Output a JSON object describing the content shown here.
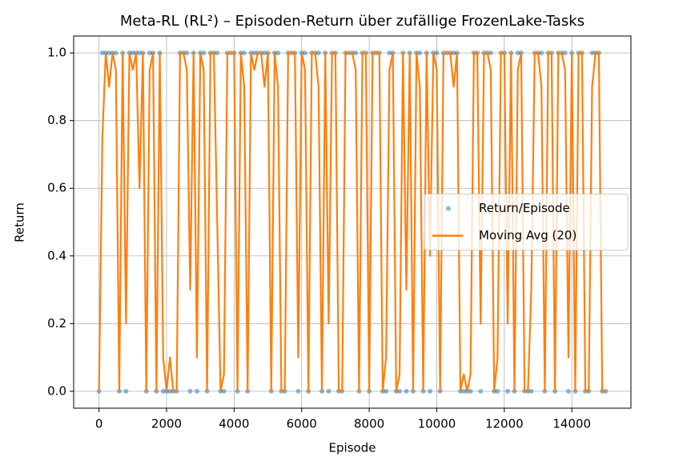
{
  "chart_data": {
    "type": "line",
    "title": "Meta-RL (RL²) – Episoden-Return über zufällige FrozenLake-Tasks",
    "xlabel": "Episode",
    "ylabel": "Return",
    "x": [
      0,
      100,
      200,
      300,
      400,
      500,
      600,
      700,
      800,
      900,
      1000,
      1100,
      1200,
      1300,
      1400,
      1500,
      1600,
      1700,
      1800,
      1900,
      2000,
      2100,
      2200,
      2300,
      2400,
      2500,
      2600,
      2700,
      2800,
      2900,
      3000,
      3100,
      3200,
      3300,
      3400,
      3500,
      3600,
      3700,
      3800,
      3900,
      4000,
      4100,
      4200,
      4300,
      4400,
      4500,
      4600,
      4700,
      4800,
      4900,
      5000,
      5100,
      5200,
      5300,
      5400,
      5500,
      5600,
      5700,
      5800,
      5900,
      6000,
      6100,
      6200,
      6300,
      6400,
      6500,
      6600,
      6700,
      6800,
      6900,
      7000,
      7100,
      7200,
      7300,
      7400,
      7500,
      7600,
      7700,
      7800,
      7900,
      8000,
      8100,
      8200,
      8300,
      8400,
      8500,
      8600,
      8700,
      8800,
      8900,
      9000,
      9100,
      9200,
      9300,
      9400,
      9500,
      9600,
      9700,
      9800,
      9900,
      10000,
      10100,
      10200,
      10300,
      10400,
      10500,
      10600,
      10700,
      10800,
      10900,
      11000,
      11100,
      11200,
      11300,
      11400,
      11500,
      11600,
      11700,
      11800,
      11900,
      12000,
      12100,
      12200,
      12300,
      12400,
      12500,
      12600,
      12700,
      12800,
      12900,
      13000,
      13100,
      13200,
      13300,
      13400,
      13500,
      13600,
      13700,
      13800,
      13900,
      14000,
      14100,
      14200,
      14300,
      14400,
      14500,
      14600,
      14700,
      14800,
      14900,
      15000
    ],
    "series": [
      {
        "name": "Return/Episode",
        "color": "#1f77b4",
        "marker": "scatter",
        "values": [
          0,
          1,
          1,
          1,
          1,
          1,
          0,
          1,
          0,
          1,
          1,
          1,
          1,
          1,
          0,
          1,
          1,
          0,
          1,
          0,
          0,
          0,
          0,
          0,
          1,
          1,
          1,
          0,
          1,
          0,
          1,
          1,
          0,
          1,
          1,
          1,
          0,
          0,
          1,
          1,
          1,
          0,
          1,
          1,
          0,
          1,
          1,
          1,
          1,
          1,
          1,
          0,
          1,
          1,
          0,
          0,
          1,
          1,
          1,
          0,
          1,
          1,
          0,
          1,
          1,
          1,
          0,
          1,
          0,
          1,
          1,
          0,
          0,
          1,
          1,
          1,
          1,
          0,
          1,
          1,
          0,
          1,
          1,
          1,
          0,
          0,
          1,
          1,
          0,
          0,
          1,
          0,
          1,
          0,
          1,
          1,
          0,
          1,
          0,
          1,
          1,
          0,
          1,
          1,
          1,
          1,
          1,
          0,
          0,
          0,
          0,
          1,
          1,
          0,
          1,
          1,
          1,
          0,
          0,
          1,
          1,
          0,
          1,
          0,
          1,
          1,
          0,
          0,
          0,
          1,
          1,
          1,
          0,
          1,
          1,
          0,
          1,
          1,
          1,
          0,
          1,
          0,
          1,
          1,
          0,
          0,
          1,
          1,
          1,
          0,
          0
        ]
      },
      {
        "name": "Moving Avg (20)",
        "color": "#ff7f0e",
        "marker": "line",
        "values": [
          0,
          0.75,
          1,
          0.9,
          1,
          0.95,
          0,
          1,
          0.2,
          1,
          0.95,
          1,
          0.6,
          1,
          0,
          0.95,
          1,
          0,
          1,
          0.1,
          0,
          0.1,
          0,
          0,
          1,
          1,
          0.95,
          0.3,
          1,
          0.1,
          1,
          0.95,
          0,
          1,
          1,
          0.5,
          0,
          0.05,
          1,
          1,
          1,
          0,
          1,
          0.9,
          0,
          1,
          0.95,
          1,
          1,
          0.9,
          1,
          0,
          1,
          0.9,
          0,
          0,
          1,
          1,
          1,
          0.1,
          1,
          0.95,
          0,
          1,
          1,
          0.9,
          0,
          1,
          0.2,
          1,
          1,
          0,
          0,
          1,
          1,
          1,
          0.95,
          0,
          1,
          1,
          0,
          1,
          1,
          1,
          0,
          0.1,
          0.95,
          1,
          0,
          0.05,
          1,
          0.3,
          1,
          0,
          1,
          0.9,
          0,
          1,
          0.4,
          1,
          0.95,
          0,
          1,
          1,
          1,
          0.9,
          1,
          0,
          0.05,
          0,
          0.05,
          1,
          1,
          0.2,
          1,
          1,
          0.95,
          0,
          0.1,
          1,
          1,
          0.2,
          1,
          0,
          0.95,
          1,
          0,
          0,
          0.3,
          1,
          1,
          0.9,
          0,
          1,
          1,
          0,
          1,
          1,
          0.95,
          0.1,
          1,
          0,
          1,
          1,
          0,
          0,
          0.9,
          1,
          1,
          0,
          0
        ]
      }
    ],
    "xlim": [
      -750,
      15750
    ],
    "ylim": [
      -0.05,
      1.05
    ],
    "xticks": [
      0,
      2000,
      4000,
      6000,
      8000,
      10000,
      12000,
      14000
    ],
    "yticks": [
      {
        "value": 0,
        "label": "0.0"
      },
      0.2,
      0.4,
      0.6,
      0.8,
      {
        "value": 1,
        "label": "1.0"
      }
    ],
    "grid": true,
    "legend": "center right"
  }
}
